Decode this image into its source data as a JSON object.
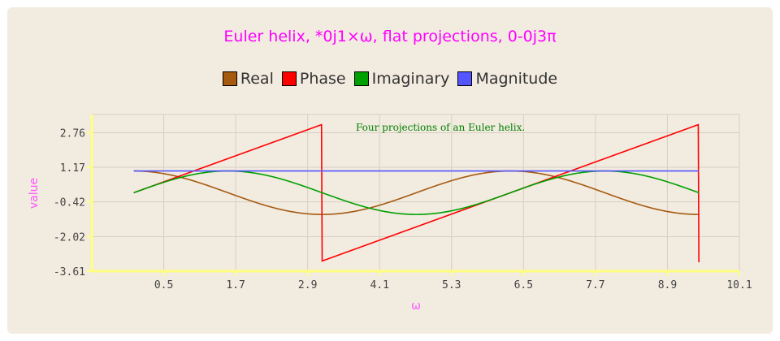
{
  "chart_data": {
    "type": "line",
    "title": "Euler helix, *0j1×ω, flat projections, 0-0j3π",
    "xlabel": "ω",
    "ylabel": "value",
    "annotation": "Four projections of an Euler helix.",
    "xlim": [
      -0.7,
      10.1
    ],
    "ylim": [
      -3.61,
      3.6
    ],
    "xticks": [
      "0.5",
      "1.7",
      "2.9",
      "4.1",
      "5.3",
      "6.5",
      "7.7",
      "8.9",
      "10.1"
    ],
    "yticks": [
      "2.76",
      "1.17",
      "-0.42",
      "-2.02",
      "-3.61"
    ],
    "xticks_values": [
      0.5,
      1.7,
      2.9,
      4.1,
      5.3,
      6.5,
      7.7,
      8.9,
      10.1
    ],
    "yticks_values": [
      2.76,
      1.17,
      -0.42,
      -2.02,
      -3.61
    ],
    "grid": true,
    "legend_position": "top",
    "x_start": 0.0,
    "x_end": 9.4248,
    "series": [
      {
        "name": "Real",
        "color": "#a55a0f",
        "function": "cos(x)",
        "amplitude": 1.0
      },
      {
        "name": "Phase",
        "color": "#ff0000",
        "function": "atan2(sin x, cos x)",
        "amplitude": 3.1416
      },
      {
        "name": "Imaginary",
        "color": "#00a000",
        "function": "sin(x)",
        "amplitude": 1.0
      },
      {
        "name": "Magnitude",
        "color": "#5555ff",
        "function": "constant",
        "amplitude": 1.0
      }
    ]
  }
}
